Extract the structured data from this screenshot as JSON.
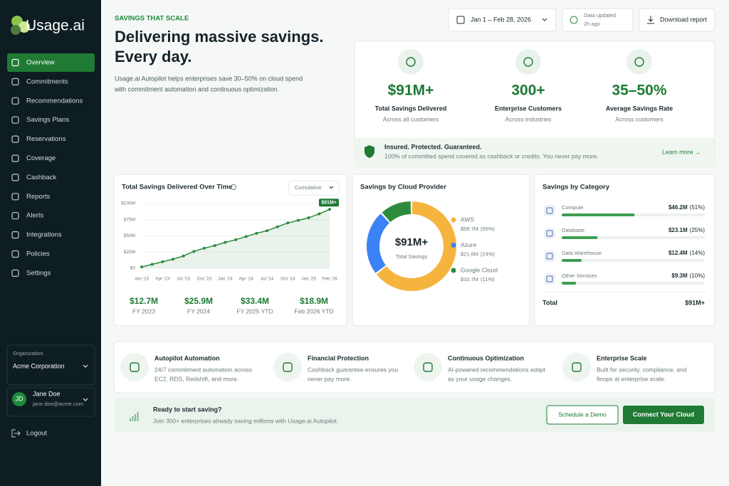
{
  "sidebar": {
    "brand": "Usage.ai",
    "nav": [
      "Overview",
      "Commitments",
      "Recommendations",
      "Savings Plans",
      "Reservations",
      "Coverage",
      "Cashback",
      "Reports",
      "Alerts",
      "Integrations",
      "Policies",
      "Settings"
    ],
    "org_label": "Organization",
    "org": "Acme Corporation",
    "user": {
      "initials": "JD",
      "name": "Jane Doe",
      "email": "jane.doe@acme.com"
    },
    "logout": "Logout"
  },
  "header": {
    "eyebrow": "SAVINGS THAT SCALE",
    "title": [
      "Delivering massive savings.",
      "Every day."
    ],
    "description": [
      "Usage.ai Autopilot helps enterprises save 30–50% on cloud spend",
      "with commitment automation and continuous optimization."
    ],
    "date_range": "Jan 1 – Feb 28, 2026",
    "updated": "Data updated",
    "updated_ago": "2h ago",
    "download": "Download report"
  },
  "stats": [
    {
      "value": "$91M+",
      "label": "Total Savings Delivered",
      "sub": "Across all customers"
    },
    {
      "value": "300+",
      "label": "Enterprise Customers",
      "sub": "Across industries"
    },
    {
      "value": "35–50%",
      "label": "Average Savings Rate",
      "sub": "Across customers"
    }
  ],
  "guarantee": {
    "title": "Insured. Protected. Guaranteed.",
    "text": "100% of committed spend covered as cashback or credits. You never pay more.",
    "link": "Learn more →"
  },
  "chart_data": [
    {
      "type": "line",
      "title": "Total Savings Delivered Over Time",
      "mode": "Cumulative",
      "categories": [
        "Jan '23",
        null,
        "Apr '23",
        null,
        "Jul '23",
        null,
        "Oct '23",
        null,
        "Jan '24",
        null,
        "Apr '24",
        null,
        "Jul '24",
        null,
        "Oct '24",
        null,
        "Jan '25",
        null,
        "Feb '26"
      ],
      "values": [
        2,
        6,
        10,
        14,
        19,
        26,
        31,
        35,
        40,
        44,
        49,
        54,
        58,
        64,
        70,
        74,
        78,
        84,
        91
      ],
      "color": "#2e8b3e",
      "ylim": [
        0,
        100
      ],
      "yticks": [
        {
          "value": 0,
          "label": "$0"
        },
        {
          "value": 25,
          "label": "$25M"
        },
        {
          "value": 50,
          "label": "$50M"
        },
        {
          "value": 75,
          "label": "$75M"
        },
        {
          "value": 100,
          "label": "$100M"
        }
      ],
      "grid": true,
      "end_label": "$91M+",
      "summary": [
        {
          "value": "$12.7M",
          "label": "FY 2023"
        },
        {
          "value": "$25.9M",
          "label": "FY 2024"
        },
        {
          "value": "$33.4M",
          "label": "FY 2025 YTD"
        },
        {
          "value": "$18.9M",
          "label": "Feb 2026 YTD"
        }
      ]
    },
    {
      "type": "donut",
      "title": "Savings by Cloud Provider",
      "categories": [
        "AWS",
        "Azure",
        "Google Cloud"
      ],
      "values": [
        58.7,
        21.6,
        10.7
      ],
      "value_labels": [
        "$58.7M",
        "$21.6M",
        "$10.7M"
      ],
      "shares": [
        65,
        24,
        11
      ],
      "share_labels": [
        "(65%)",
        "(24%)",
        "(11%)"
      ],
      "colors": [
        "#f4b43e",
        "#3b82f6",
        "#2e8b3e"
      ],
      "center_value": "$91M+",
      "center_label": "Total Savings"
    },
    {
      "type": "bar",
      "title": "Savings by Category",
      "categories": [
        "Compute",
        "Database",
        "Data Warehouse",
        "Other Services"
      ],
      "values": [
        46.2,
        23.1,
        12.4,
        9.3
      ],
      "value_labels": [
        "$46.2M",
        "$23.1M",
        "$12.4M",
        "$9.3M"
      ],
      "shares": [
        51,
        25,
        14,
        10
      ],
      "share_labels": [
        "(51%)",
        "(25%)",
        "(14%)",
        "(10%)"
      ],
      "color": "#3f9d4f",
      "total_label": "Total",
      "total_value": "$91M+"
    }
  ],
  "features": [
    {
      "title": "Autopilot Automation",
      "text": [
        "24/7 commitment automation across",
        "EC2, RDS, Redshift, and more."
      ]
    },
    {
      "title": "Financial Protection",
      "text": [
        "Cashback guarantee ensures you",
        "never pay more."
      ]
    },
    {
      "title": "Continuous Optimization",
      "text": [
        "AI-powered recommendations adapt",
        "as your usage changes."
      ]
    },
    {
      "title": "Enterprise Scale",
      "text": [
        "Built for security, compliance, and",
        "finops at enterprise scale."
      ]
    }
  ],
  "cta": {
    "title": "Ready to start saving?",
    "text": "Join 300+ enterprises already saving millions with Usage.ai Autopilot.",
    "secondary": "Schedule a Demo",
    "primary": "Connect Your Cloud"
  }
}
